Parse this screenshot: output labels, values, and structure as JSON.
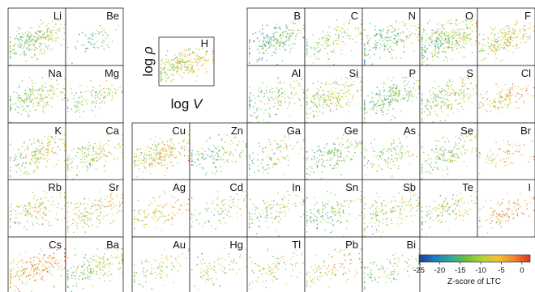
{
  "chart_data": {
    "type": "scatter",
    "description_axes": {
      "xlabel": "log V",
      "ylabel": "log ρ"
    },
    "key_panel": {
      "element": "H",
      "xlabel_text": "log",
      "xlabel_var": "V",
      "ylabel_text": "log",
      "ylabel_var": "ρ"
    },
    "panels": [
      {
        "element": "Li",
        "row": 0,
        "col": 0,
        "mean_z": -12,
        "density": 1.0,
        "spread": 0.28
      },
      {
        "element": "Be",
        "row": 0,
        "col": 1,
        "mean_z": -14,
        "density": 0.25,
        "spread": 0.22
      },
      {
        "element": "B",
        "row": 0,
        "col": 4,
        "mean_z": -16,
        "density": 0.8,
        "spread": 0.3
      },
      {
        "element": "C",
        "row": 0,
        "col": 5,
        "mean_z": -11,
        "density": 0.55,
        "spread": 0.3
      },
      {
        "element": "N",
        "row": 0,
        "col": 6,
        "mean_z": -14,
        "density": 0.7,
        "spread": 0.32
      },
      {
        "element": "O",
        "row": 0,
        "col": 7,
        "mean_z": -12,
        "density": 1.3,
        "spread": 0.32
      },
      {
        "element": "F",
        "row": 0,
        "col": 8,
        "mean_z": -8,
        "density": 0.8,
        "spread": 0.26
      },
      {
        "element": "Na",
        "row": 1,
        "col": 0,
        "mean_z": -12,
        "density": 0.8,
        "spread": 0.28
      },
      {
        "element": "Mg",
        "row": 1,
        "col": 1,
        "mean_z": -11,
        "density": 0.45,
        "spread": 0.25
      },
      {
        "element": "Al",
        "row": 1,
        "col": 4,
        "mean_z": -13,
        "density": 0.55,
        "spread": 0.34
      },
      {
        "element": "Si",
        "row": 1,
        "col": 5,
        "mean_z": -10,
        "density": 0.8,
        "spread": 0.3
      },
      {
        "element": "P",
        "row": 1,
        "col": 6,
        "mean_z": -14,
        "density": 0.85,
        "spread": 0.3
      },
      {
        "element": "S",
        "row": 1,
        "col": 7,
        "mean_z": -11,
        "density": 0.8,
        "spread": 0.3
      },
      {
        "element": "Cl",
        "row": 1,
        "col": 8,
        "mean_z": -6,
        "density": 0.5,
        "spread": 0.24
      },
      {
        "element": "K",
        "row": 2,
        "col": 0,
        "mean_z": -11,
        "density": 0.75,
        "spread": 0.3
      },
      {
        "element": "Ca",
        "row": 2,
        "col": 1,
        "mean_z": -10,
        "density": 0.65,
        "spread": 0.3
      },
      {
        "element": "Cu",
        "row": 2,
        "col": 2,
        "mean_z": -8,
        "density": 0.9,
        "spread": 0.28
      },
      {
        "element": "Zn",
        "row": 2,
        "col": 3,
        "mean_z": -14,
        "density": 0.5,
        "spread": 0.3
      },
      {
        "element": "Ga",
        "row": 2,
        "col": 4,
        "mean_z": -12,
        "density": 0.4,
        "spread": 0.3
      },
      {
        "element": "Ge",
        "row": 2,
        "col": 5,
        "mean_z": -14,
        "density": 0.6,
        "spread": 0.3
      },
      {
        "element": "As",
        "row": 2,
        "col": 6,
        "mean_z": -12,
        "density": 0.45,
        "spread": 0.3
      },
      {
        "element": "Se",
        "row": 2,
        "col": 7,
        "mean_z": -12,
        "density": 0.6,
        "spread": 0.3
      },
      {
        "element": "Br",
        "row": 2,
        "col": 8,
        "mean_z": -6,
        "density": 0.3,
        "spread": 0.24
      },
      {
        "element": "Rb",
        "row": 3,
        "col": 0,
        "mean_z": -10,
        "density": 0.55,
        "spread": 0.3
      },
      {
        "element": "Sr",
        "row": 3,
        "col": 1,
        "mean_z": -8,
        "density": 0.6,
        "spread": 0.3
      },
      {
        "element": "Ag",
        "row": 3,
        "col": 2,
        "mean_z": -7,
        "density": 0.45,
        "spread": 0.3
      },
      {
        "element": "Cd",
        "row": 3,
        "col": 3,
        "mean_z": -12,
        "density": 0.35,
        "spread": 0.3
      },
      {
        "element": "In",
        "row": 3,
        "col": 4,
        "mean_z": -12,
        "density": 0.45,
        "spread": 0.3
      },
      {
        "element": "Sn",
        "row": 3,
        "col": 5,
        "mean_z": -13,
        "density": 0.55,
        "spread": 0.32
      },
      {
        "element": "Sb",
        "row": 3,
        "col": 6,
        "mean_z": -11,
        "density": 0.6,
        "spread": 0.32
      },
      {
        "element": "Te",
        "row": 3,
        "col": 7,
        "mean_z": -11,
        "density": 0.5,
        "spread": 0.3
      },
      {
        "element": "I",
        "row": 3,
        "col": 8,
        "mean_z": -4,
        "density": 0.45,
        "spread": 0.28
      },
      {
        "element": "Cs",
        "row": 4,
        "col": 0,
        "mean_z": -4,
        "density": 0.8,
        "spread": 0.3
      },
      {
        "element": "Ba",
        "row": 4,
        "col": 1,
        "mean_z": -11,
        "density": 0.75,
        "spread": 0.3
      },
      {
        "element": "Au",
        "row": 4,
        "col": 2,
        "mean_z": -10,
        "density": 0.35,
        "spread": 0.3
      },
      {
        "element": "Hg",
        "row": 4,
        "col": 3,
        "mean_z": -11,
        "density": 0.3,
        "spread": 0.3
      },
      {
        "element": "Tl",
        "row": 4,
        "col": 4,
        "mean_z": -11,
        "density": 0.35,
        "spread": 0.3
      },
      {
        "element": "Pb",
        "row": 4,
        "col": 5,
        "mean_z": -6,
        "density": 0.4,
        "spread": 0.3
      },
      {
        "element": "Bi",
        "row": 4,
        "col": 6,
        "mean_z": -12,
        "density": 0.35,
        "spread": 0.28
      }
    ],
    "colorbar": {
      "label": "Z-score of LTC",
      "ticks": [
        -25,
        -20,
        -15,
        -10,
        -5,
        0
      ],
      "range": [
        -25,
        2
      ],
      "colors": [
        "#1f3f98",
        "#1e7cc2",
        "#2fa89a",
        "#6cbf3f",
        "#b5d334",
        "#f2c431",
        "#f0842c",
        "#e0302a"
      ]
    }
  }
}
